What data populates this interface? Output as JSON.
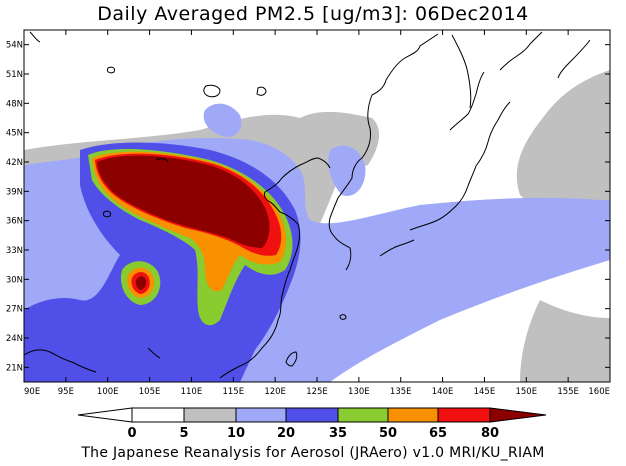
{
  "title": "Daily Averaged PM2.5 [ug/m3]: 06Dec2014",
  "credit": "The Japanese Reanalysis for Aerosol (JRAero) v1.0 MRI/KU_RIAM",
  "map": {
    "lon_range": [
      90,
      160
    ],
    "lat_range": [
      19.5,
      55.5
    ],
    "lon_ticks": [
      "90E",
      "95E",
      "100E",
      "105E",
      "110E",
      "115E",
      "120E",
      "125E",
      "130E",
      "135E",
      "140E",
      "145E",
      "150E",
      "155E",
      "160E"
    ],
    "lat_ticks": [
      "21N",
      "24N",
      "27N",
      "30N",
      "33N",
      "36N",
      "39N",
      "42N",
      "45N",
      "48N",
      "51N",
      "54N"
    ]
  },
  "legend": {
    "levels": [
      "0",
      "5",
      "10",
      "20",
      "35",
      "50",
      "65",
      "80"
    ],
    "colors": {
      "lt5": "#ffffff",
      "c5_10": "#c0c0c0",
      "c10_20": "#a0a8f8",
      "c20_35": "#5050e8",
      "c35_50": "#88cc30",
      "c50_65": "#f89000",
      "c65_80": "#f01010",
      "gt80": "#8c0000"
    }
  }
}
